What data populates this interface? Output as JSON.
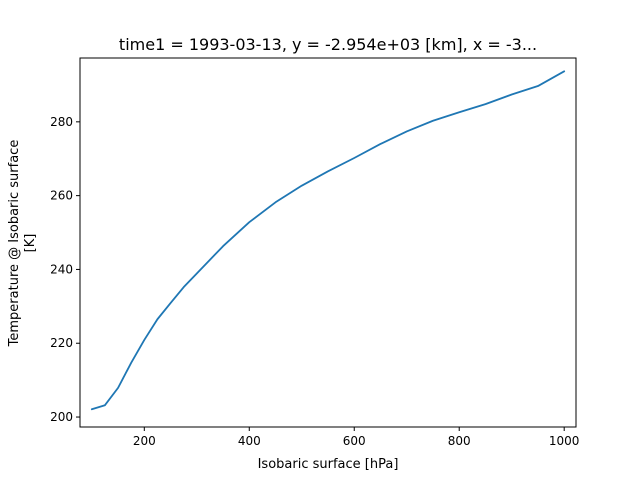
{
  "chart_data": {
    "type": "line",
    "title": "time1 = 1993-03-13, y = -2.954e+03 [km], x = -3...",
    "xlabel": "Isobaric surface [hPa]",
    "ylabel_line1": "Temperature @ Isobaric surface",
    "ylabel_line2": "[K]",
    "xlim": [
      77.5,
      1022.5
    ],
    "ylim": [
      197.3,
      297.3
    ],
    "xticks": [
      200,
      400,
      600,
      800,
      1000
    ],
    "yticks": [
      200,
      220,
      240,
      260,
      280
    ],
    "grid": false,
    "line_color": "#1f77b4",
    "series": [
      {
        "x": [
          100,
          125,
          150,
          175,
          200,
          225,
          250,
          275,
          300,
          350,
          400,
          450,
          500,
          550,
          600,
          650,
          700,
          750,
          800,
          850,
          900,
          950,
          1000
        ],
        "y": [
          202.1,
          203.2,
          207.9,
          214.7,
          220.9,
          226.5,
          230.9,
          235.2,
          238.9,
          246.3,
          252.8,
          258.2,
          262.7,
          266.6,
          270.2,
          274.0,
          277.4,
          280.3,
          282.6,
          284.8,
          287.4,
          289.7,
          293.7
        ]
      }
    ]
  }
}
